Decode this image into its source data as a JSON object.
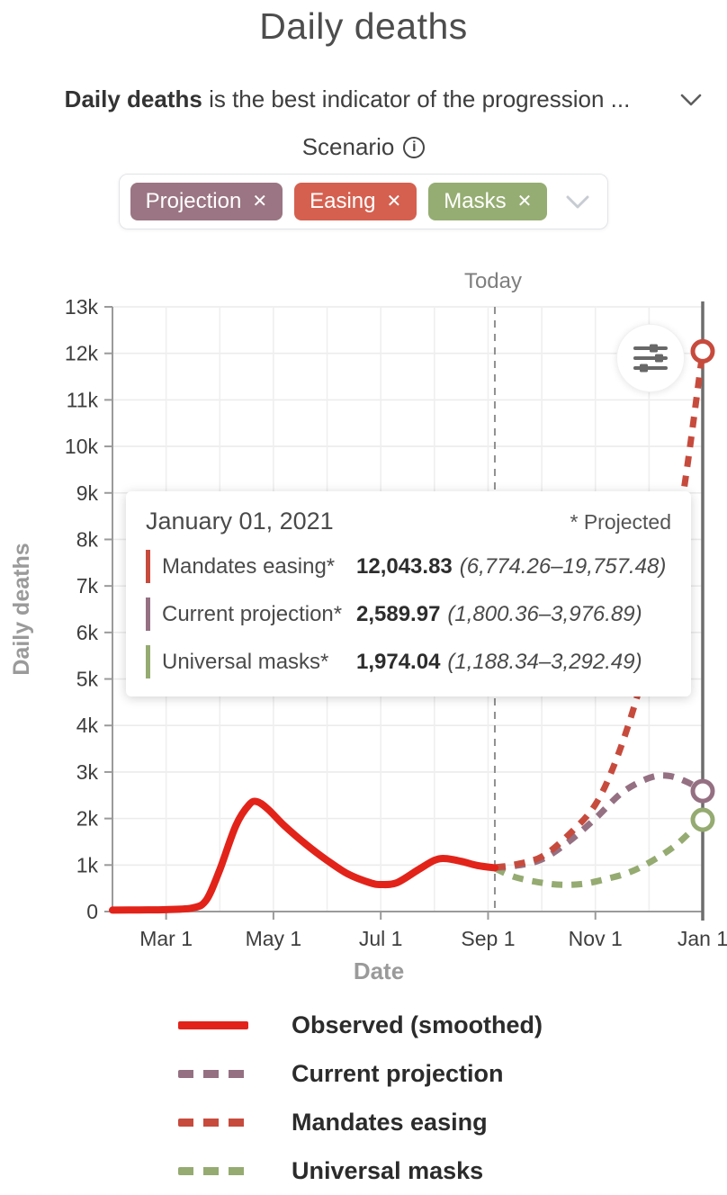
{
  "header": {
    "title": "Daily deaths",
    "subtitle_bold": "Daily deaths",
    "subtitle_rest": " is the best indicator of the progression ...",
    "scenario_label": "Scenario",
    "info_icon_glyph": "i"
  },
  "chips": [
    {
      "label": "Projection",
      "remove_glyph": "✕",
      "color": "#9b7583"
    },
    {
      "label": "Easing",
      "remove_glyph": "✕",
      "color": "#d5604f"
    },
    {
      "label": "Masks",
      "remove_glyph": "✕",
      "color": "#95ad72"
    }
  ],
  "tooltip": {
    "date": "January 01, 2021",
    "note": "* Projected",
    "rows": [
      {
        "label": "Mandates easing*",
        "value": "12,043.83",
        "range": "(6,774.26–19,757.48)",
        "color": "#c74b3d"
      },
      {
        "label": "Current projection*",
        "value": "2,589.97",
        "range": "(1,800.36–3,976.89)",
        "color": "#957082"
      },
      {
        "label": "Universal masks*",
        "value": "1,974.04",
        "range": "(1,188.34–3,292.49)",
        "color": "#95ab71"
      }
    ]
  },
  "legend": {
    "items": [
      {
        "label": "Observed (smoothed)",
        "color": "#e2231a",
        "dashed": false
      },
      {
        "label": "Current projection",
        "color": "#957082",
        "dashed": true
      },
      {
        "label": "Mandates easing",
        "color": "#c74b3d",
        "dashed": true
      },
      {
        "label": "Universal masks",
        "color": "#95ab71",
        "dashed": true
      }
    ]
  },
  "chart_data": {
    "type": "line",
    "title": "Daily deaths",
    "xlabel": "Date",
    "ylabel": "Daily deaths",
    "x_unit": "months since Feb 1, 2020",
    "ylim": [
      0,
      13000
    ],
    "grid": true,
    "today_label": "Today",
    "today_x": 7.126,
    "hover_x": 11,
    "x_ticks": [
      {
        "x": 1,
        "label": "Mar 1"
      },
      {
        "x": 3,
        "label": "May 1"
      },
      {
        "x": 5,
        "label": "Jul 1"
      },
      {
        "x": 7,
        "label": "Sep 1"
      },
      {
        "x": 9,
        "label": "Nov 1"
      },
      {
        "x": 11,
        "label": "Jan 1"
      }
    ],
    "y_ticks": [
      {
        "v": 0,
        "label": "0"
      },
      {
        "v": 1000,
        "label": "1k"
      },
      {
        "v": 2000,
        "label": "2k"
      },
      {
        "v": 3000,
        "label": "3k"
      },
      {
        "v": 4000,
        "label": "4k"
      },
      {
        "v": 5000,
        "label": "5k"
      },
      {
        "v": 6000,
        "label": "6k"
      },
      {
        "v": 7000,
        "label": "7k"
      },
      {
        "v": 8000,
        "label": "8k"
      },
      {
        "v": 9000,
        "label": "9k"
      },
      {
        "v": 10000,
        "label": "10k"
      },
      {
        "v": 11000,
        "label": "11k"
      },
      {
        "v": 12000,
        "label": "12k"
      },
      {
        "v": 13000,
        "label": "13k"
      }
    ],
    "series": [
      {
        "name": "Universal masks",
        "color": "#95ab71",
        "style": "dashed",
        "end_marker": true,
        "points": [
          [
            7.126,
            930
          ],
          [
            7.5,
            740
          ],
          [
            8.0,
            620
          ],
          [
            8.4,
            575
          ],
          [
            8.8,
            600
          ],
          [
            9.2,
            700
          ],
          [
            9.6,
            830
          ],
          [
            10.0,
            1050
          ],
          [
            10.5,
            1430
          ],
          [
            11,
            1974.04
          ]
        ]
      },
      {
        "name": "Current projection",
        "color": "#957082",
        "style": "dashed",
        "end_marker": true,
        "points": [
          [
            7.126,
            940
          ],
          [
            7.5,
            980
          ],
          [
            8.0,
            1120
          ],
          [
            8.5,
            1500
          ],
          [
            9.0,
            2000
          ],
          [
            9.5,
            2560
          ],
          [
            10.0,
            2870
          ],
          [
            10.35,
            2920
          ],
          [
            10.7,
            2790
          ],
          [
            11,
            2589.97
          ]
        ]
      },
      {
        "name": "Mandates easing",
        "color": "#c74b3d",
        "style": "dashed",
        "end_marker": true,
        "points": [
          [
            7.126,
            950
          ],
          [
            7.5,
            1010
          ],
          [
            8.0,
            1180
          ],
          [
            8.5,
            1650
          ],
          [
            9.0,
            2300
          ],
          [
            9.4,
            3300
          ],
          [
            9.8,
            4700
          ],
          [
            10.2,
            6400
          ],
          [
            10.6,
            8700
          ],
          [
            11,
            12043.83
          ]
        ]
      },
      {
        "name": "Observed (smoothed)",
        "color": "#e2231a",
        "style": "solid",
        "end_marker": false,
        "points": [
          [
            0,
            30
          ],
          [
            0.5,
            35
          ],
          [
            1.0,
            40
          ],
          [
            1.5,
            80
          ],
          [
            1.75,
            250
          ],
          [
            2.0,
            900
          ],
          [
            2.3,
            1850
          ],
          [
            2.55,
            2300
          ],
          [
            2.7,
            2360
          ],
          [
            2.9,
            2200
          ],
          [
            3.2,
            1850
          ],
          [
            3.6,
            1450
          ],
          [
            4.0,
            1100
          ],
          [
            4.4,
            800
          ],
          [
            4.8,
            620
          ],
          [
            5.0,
            580
          ],
          [
            5.3,
            620
          ],
          [
            5.7,
            900
          ],
          [
            6.0,
            1100
          ],
          [
            6.2,
            1140
          ],
          [
            6.5,
            1080
          ],
          [
            6.8,
            990
          ],
          [
            7.126,
            940
          ]
        ]
      }
    ]
  }
}
